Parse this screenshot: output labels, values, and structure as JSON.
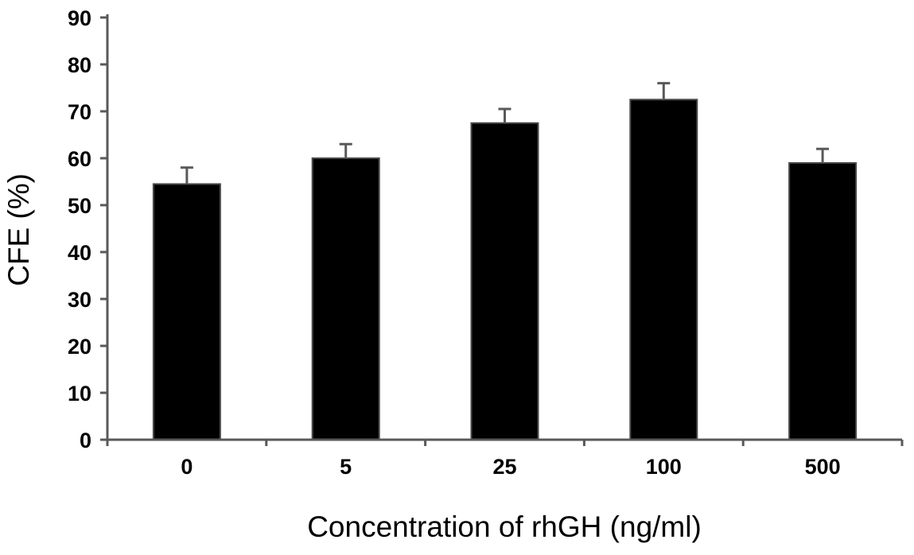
{
  "chart_data": {
    "type": "bar",
    "title": "",
    "xlabel": "Concentration of rhGH (ng/ml)",
    "ylabel": "CFE (%)",
    "categories": [
      "0",
      "5",
      "25",
      "100",
      "500"
    ],
    "values": [
      54.5,
      60,
      67.5,
      72.5,
      59
    ],
    "error_bars": [
      3.5,
      3,
      3,
      3.5,
      3
    ],
    "ylim": [
      0,
      90
    ],
    "yticks": [
      0,
      10,
      20,
      30,
      40,
      50,
      60,
      70,
      80,
      90
    ],
    "ytick_labels": [
      "0",
      "10",
      "20",
      "30",
      "40",
      "50",
      "60",
      "70",
      "80",
      "90"
    ],
    "grid": false,
    "legend": "none",
    "bar_color": "#000000",
    "error_color": "#595959",
    "axis_color": "#595959"
  }
}
